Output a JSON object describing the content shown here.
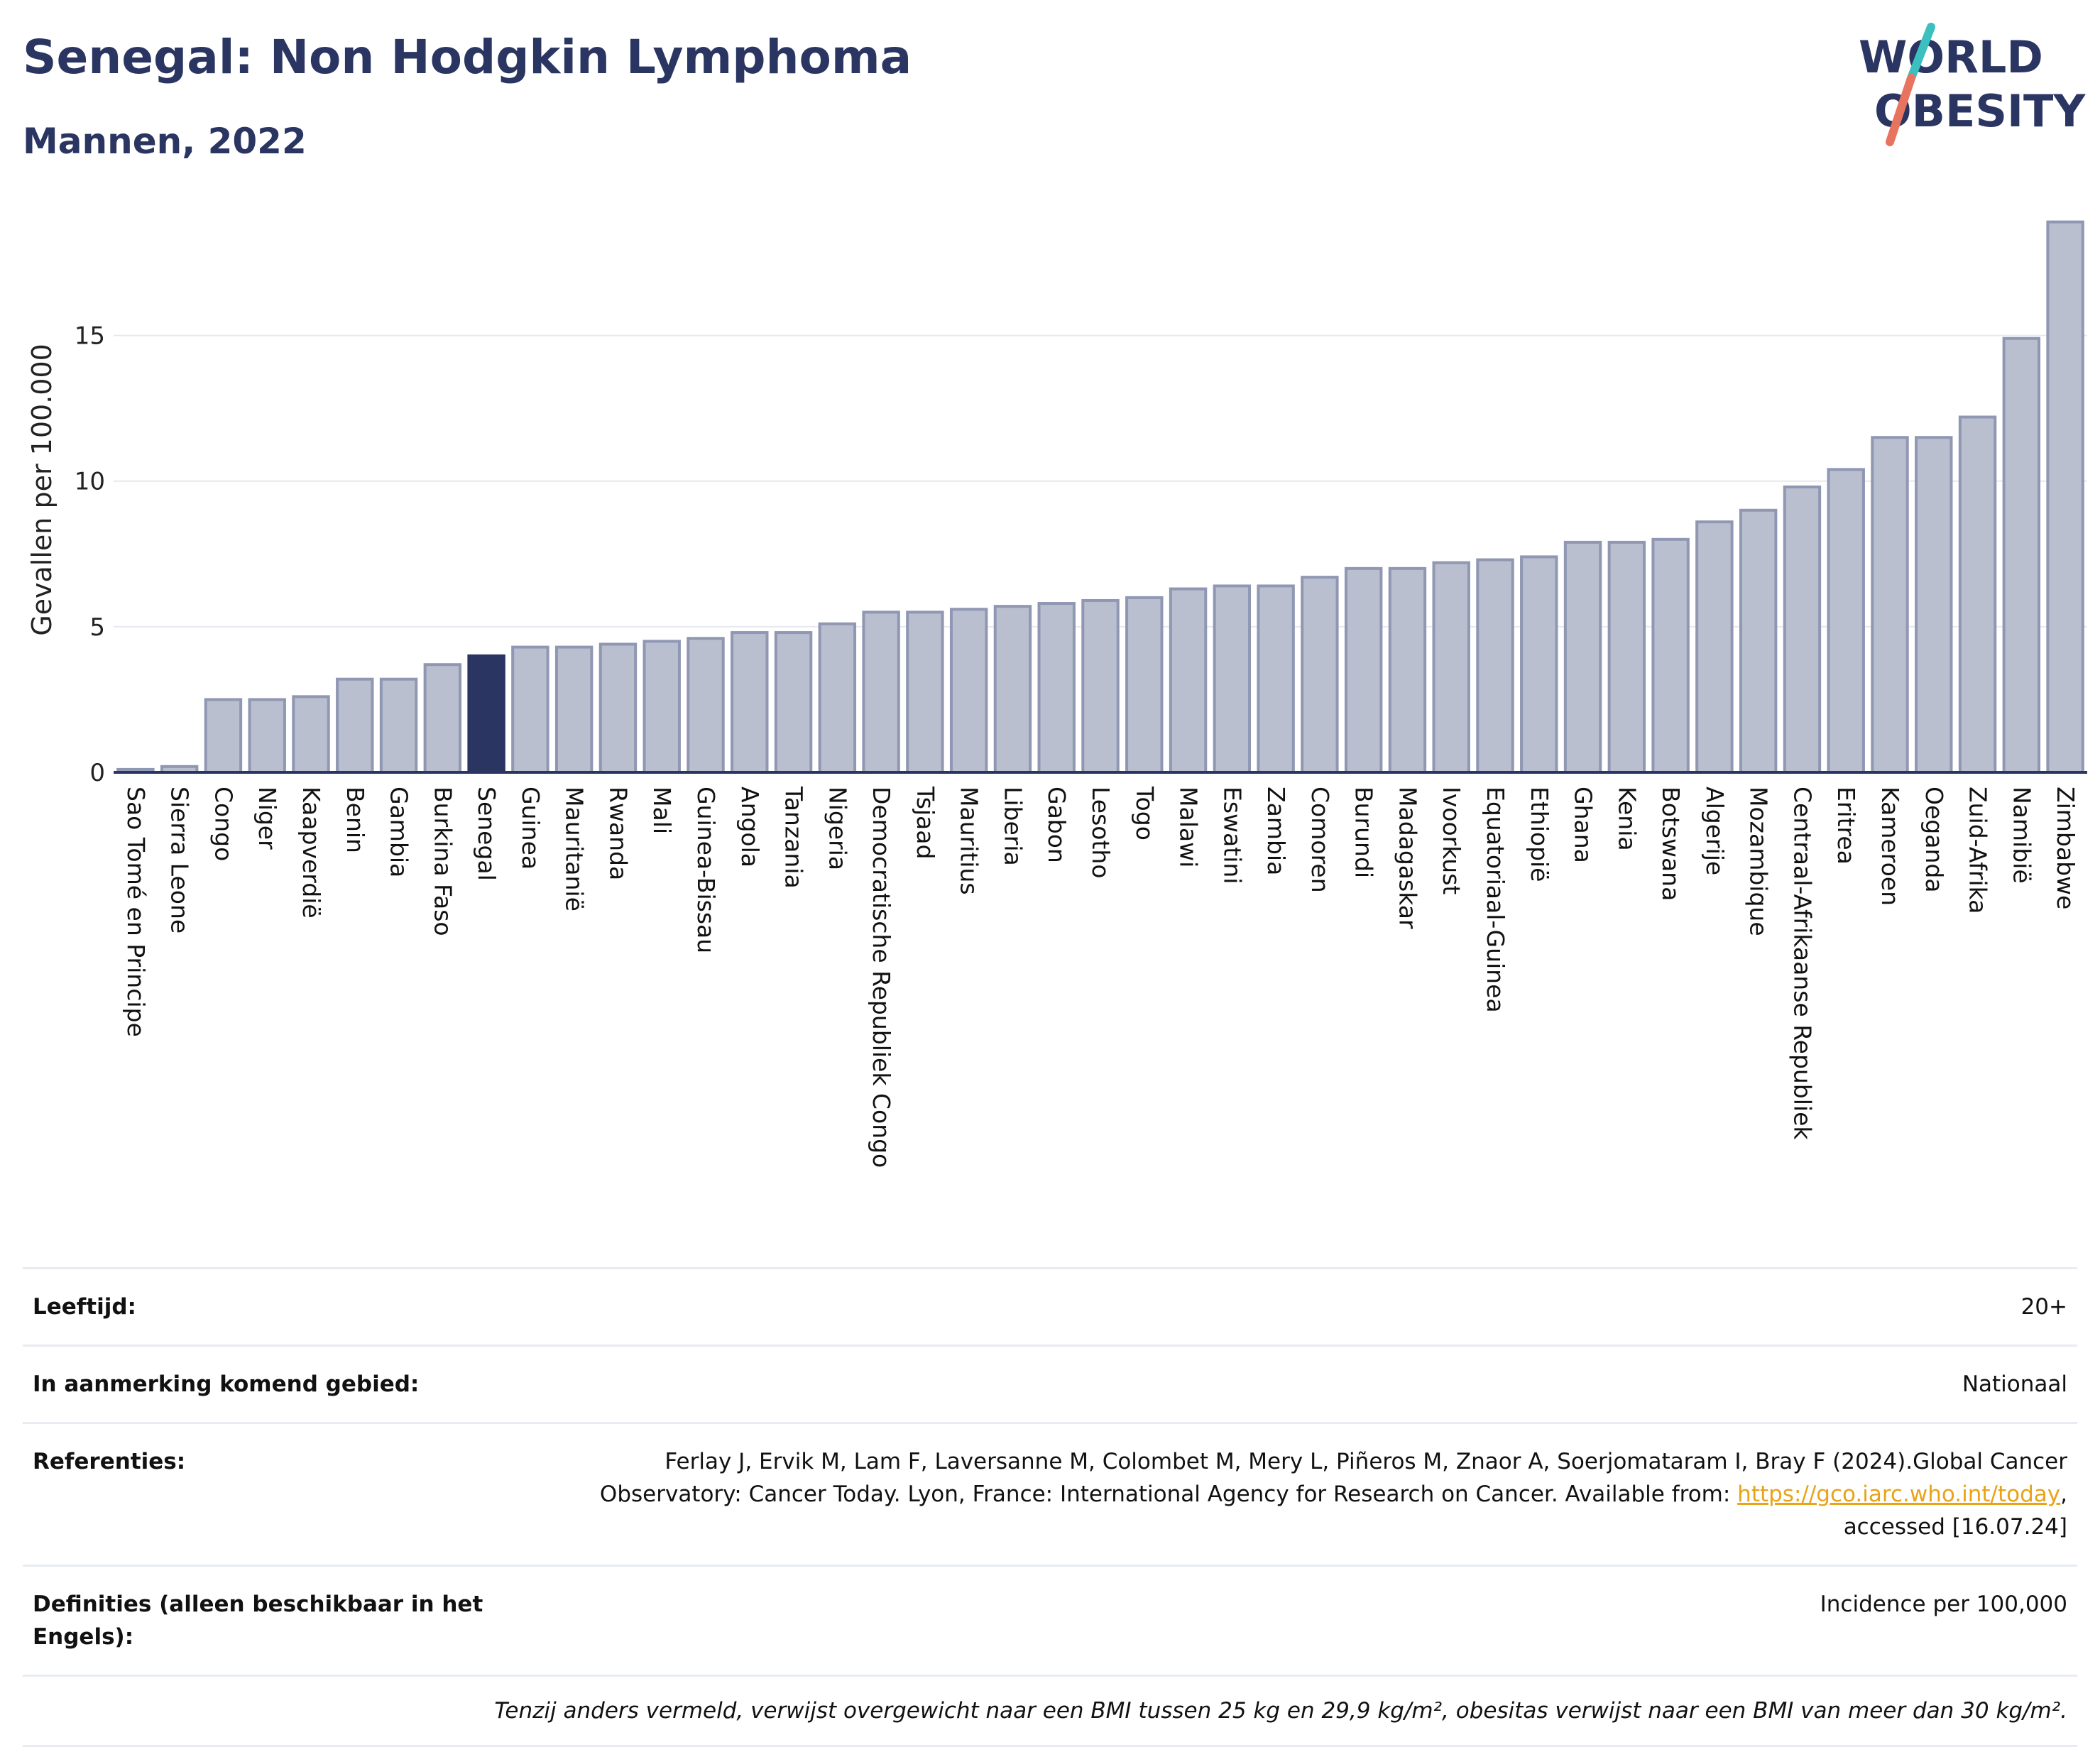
{
  "title": "Senegal: Non Hodgkin Lymphoma",
  "subtitle": "Mannen, 2022",
  "logo": {
    "line1": "WORLD",
    "line2": "OBESITY"
  },
  "colors": {
    "title": "#2a3562",
    "bar": "#b9bfce",
    "bar_border": "#8f97b3",
    "highlight": "#2a3562",
    "axis": "#2a3562",
    "grid": "#e6e9f0",
    "logo_teal": "#3bbfbf",
    "logo_coral": "#e8735f",
    "link": "#e8a317"
  },
  "chart_data": {
    "type": "bar",
    "ylabel": "Gevallen per 100.000",
    "xlabel": "",
    "ylim": [
      0,
      19.5
    ],
    "yticks": [
      0,
      5,
      10,
      15
    ],
    "grid": true,
    "highlight": "Senegal",
    "categories": [
      "Sao Tomé en Principe",
      "Sierra Leone",
      "Congo",
      "Niger",
      "Kaapverdië",
      "Benin",
      "Gambia",
      "Burkina Faso",
      "Senegal",
      "Guinea",
      "Mauritanië",
      "Rwanda",
      "Mali",
      "Guinea-Bissau",
      "Angola",
      "Tanzania",
      "Nigeria",
      "Democratische Republiek Congo",
      "Tsjaad",
      "Mauritius",
      "Liberia",
      "Gabon",
      "Lesotho",
      "Togo",
      "Malawi",
      "Eswatini",
      "Zambia",
      "Comoren",
      "Burundi",
      "Madagaskar",
      "Ivoorkust",
      "Equatoriaal-Guinea",
      "Ethiopië",
      "Ghana",
      "Kenia",
      "Botswana",
      "Algerije",
      "Mozambique",
      "Centraal-Afrikaanse Republiek",
      "Eritrea",
      "Kameroen",
      "Oeganda",
      "Zuid-Afrika",
      "Namibië",
      "Zimbabwe"
    ],
    "values": [
      0.1,
      0.2,
      2.5,
      2.5,
      2.6,
      3.2,
      3.2,
      3.7,
      4.0,
      4.3,
      4.3,
      4.4,
      4.5,
      4.6,
      4.8,
      4.8,
      5.1,
      5.5,
      5.5,
      5.6,
      5.7,
      5.8,
      5.9,
      6.0,
      6.3,
      6.4,
      6.4,
      6.7,
      7.0,
      7.0,
      7.2,
      7.3,
      7.4,
      7.9,
      7.9,
      8.0,
      8.6,
      9.0,
      9.8,
      10.4,
      11.5,
      11.5,
      12.2,
      14.9,
      18.9
    ]
  },
  "info": {
    "age_label": "Leeftijd:",
    "age_value": "20+",
    "area_label": "In aanmerking komend gebied:",
    "area_value": "Nationaal",
    "ref_label": "Referenties:",
    "ref_text": "Ferlay J, Ervik M, Lam F, Laversanne M, Colombet M, Mery L, Piñeros M, Znaor A, Soerjomataram I, Bray F (2024).Global Cancer Observatory: Cancer Today. Lyon, France: International Agency for Research on Cancer. Available from:",
    "ref_link": "https://gco.iarc.who.int/today",
    "ref_tail": ", accessed [16.07.24]",
    "def_label": "Definities (alleen beschikbaar in het Engels):",
    "def_value": "Incidence per 100,000",
    "footnote": "Tenzij anders vermeld, verwijst overgewicht naar een BMI tussen 25 kg en 29,9 kg/m², obesitas verwijst naar een BMI van meer dan 30 kg/m²."
  }
}
